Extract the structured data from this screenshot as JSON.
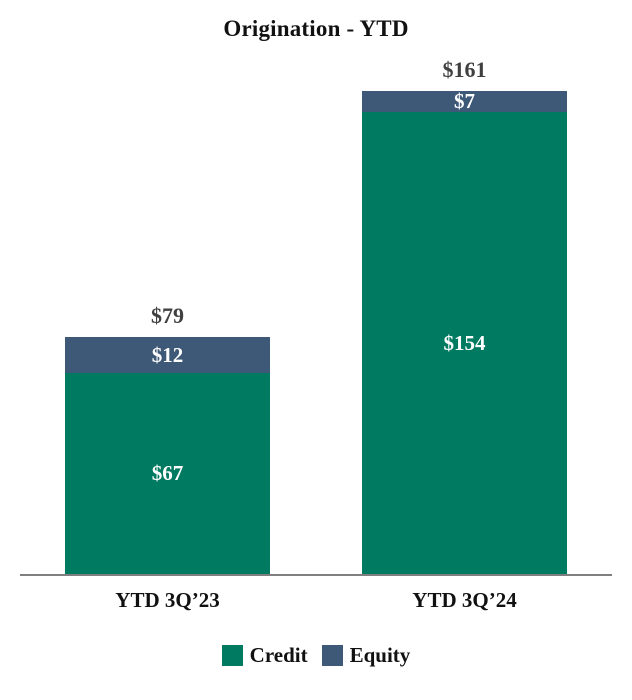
{
  "chart_data": {
    "type": "bar",
    "stacked": true,
    "title": "Origination - YTD",
    "categories": [
      "YTD 3Q’23",
      "YTD 3Q’24"
    ],
    "series": [
      {
        "name": "Credit",
        "color": "#007a60",
        "values": [
          67,
          154
        ]
      },
      {
        "name": "Equity",
        "color": "#3e5877",
        "values": [
          12,
          7
        ]
      }
    ],
    "totals": [
      79,
      161
    ],
    "total_labels": [
      "$79",
      "$161"
    ],
    "segment_labels": [
      [
        "$67",
        "$12"
      ],
      [
        "$154",
        "$7"
      ]
    ],
    "ylim": [
      0,
      170
    ],
    "grid": false,
    "legend_position": "bottom",
    "axis_color": "#7f7f7f",
    "total_label_color": "#404040"
  }
}
